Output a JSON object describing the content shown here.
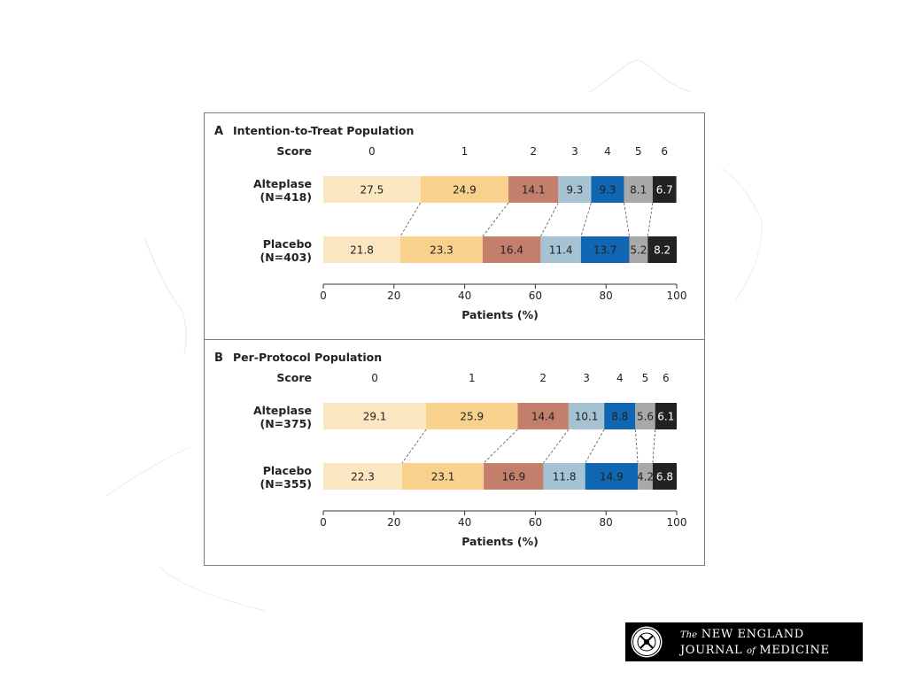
{
  "logo": {
    "the": "The",
    "line1": "NEW ENGLAND",
    "journal": "JOURNAL",
    "of": "of",
    "medicine": "MEDICINE"
  },
  "colors": {
    "score_0": "#fbe6c2",
    "score_1": "#f8d18d",
    "score_2": "#c47f6c",
    "score_3": "#a6c3d4",
    "score_4": "#1066b0",
    "score_5": "#a9a9a9",
    "score_6": "#222222",
    "frame": "#7a7a7a"
  },
  "chart_data": [
    {
      "type": "bar",
      "orientation": "horizontal-stacked",
      "panel_letter": "A",
      "title": "Intention-to-Treat Population",
      "score_label": "Score",
      "scores": [
        "0",
        "1",
        "2",
        "3",
        "4",
        "5",
        "6"
      ],
      "xlabel": "Patients (%)",
      "xlim": [
        0,
        100
      ],
      "xticks": [
        0,
        20,
        40,
        60,
        80,
        100
      ],
      "grid": false,
      "categories": [
        {
          "name": "Alteplase",
          "n": "(N=418)",
          "values": [
            27.5,
            24.9,
            14.1,
            9.3,
            9.3,
            8.1,
            6.7
          ]
        },
        {
          "name": "Placebo",
          "n": "(N=403)",
          "values": [
            21.8,
            23.3,
            16.4,
            11.4,
            13.7,
            5.2,
            8.2
          ]
        }
      ]
    },
    {
      "type": "bar",
      "orientation": "horizontal-stacked",
      "panel_letter": "B",
      "title": "Per-Protocol Population",
      "score_label": "Score",
      "scores": [
        "0",
        "1",
        "2",
        "3",
        "4",
        "5",
        "6"
      ],
      "xlabel": "Patients (%)",
      "xlim": [
        0,
        100
      ],
      "xticks": [
        0,
        20,
        40,
        60,
        80,
        100
      ],
      "grid": false,
      "categories": [
        {
          "name": "Alteplase",
          "n": "(N=375)",
          "values": [
            29.1,
            25.9,
            14.4,
            10.1,
            8.8,
            5.6,
            6.1
          ]
        },
        {
          "name": "Placebo",
          "n": "(N=355)",
          "values": [
            22.3,
            23.1,
            16.9,
            11.8,
            14.9,
            4.2,
            6.8
          ]
        }
      ]
    }
  ]
}
